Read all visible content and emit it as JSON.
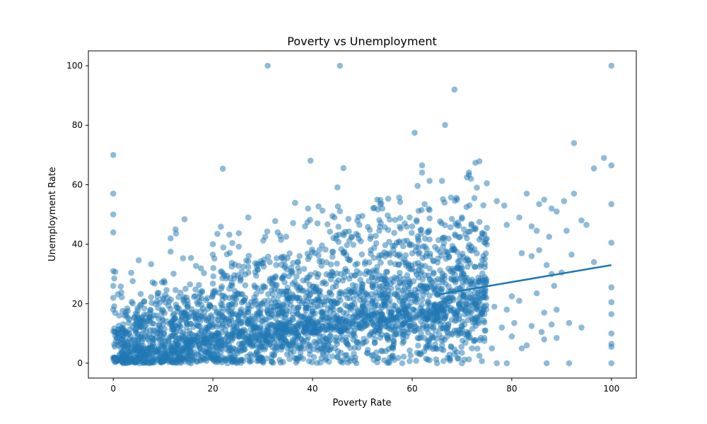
{
  "chart_data": {
    "type": "scatter",
    "title": "Poverty vs Unemployment",
    "xlabel": "Poverty Rate",
    "ylabel": "Unemployment Rate",
    "xlim": [
      -5,
      105
    ],
    "ylim": [
      -5,
      105
    ],
    "xticks": [
      0,
      20,
      40,
      60,
      80,
      100
    ],
    "yticks": [
      0,
      20,
      40,
      60,
      80,
      100
    ],
    "grid": false,
    "legend": "none",
    "point_color": "#1f77b4",
    "point_alpha": 0.5,
    "line_color": "#1f77b4",
    "series": [
      {
        "kind": "scatter",
        "points": [
          [
            31,
            100
          ],
          [
            45.5,
            100
          ],
          [
            68.5,
            92
          ],
          [
            100,
            100
          ],
          [
            60.5,
            77.5
          ],
          [
            62,
            66.5
          ],
          [
            0,
            70
          ],
          [
            0,
            57
          ],
          [
            0,
            50
          ],
          [
            0,
            44
          ],
          [
            92.5,
            74
          ],
          [
            98.5,
            69
          ],
          [
            96.5,
            65.5
          ],
          [
            100,
            66.5
          ],
          [
            100,
            53.5
          ],
          [
            100,
            40.5
          ],
          [
            71,
            62.5
          ],
          [
            75,
            60.5
          ],
          [
            69,
            55
          ],
          [
            72.5,
            55.5
          ],
          [
            77,
            54.5
          ],
          [
            78.5,
            53
          ],
          [
            83,
            57
          ],
          [
            85.5,
            53.5
          ],
          [
            86.5,
            55
          ],
          [
            88,
            52
          ],
          [
            89,
            51
          ],
          [
            90.5,
            54.5
          ],
          [
            92.5,
            57
          ],
          [
            94,
            48
          ],
          [
            95,
            46.5
          ],
          [
            91,
            44.5
          ],
          [
            96.5,
            34
          ],
          [
            92,
            36.5
          ],
          [
            100,
            25.5
          ],
          [
            100,
            20.5
          ],
          [
            100,
            16.5
          ],
          [
            100,
            10
          ],
          [
            100,
            6.5
          ],
          [
            100,
            5.5
          ],
          [
            100,
            0
          ],
          [
            12.5,
            45
          ],
          [
            11.5,
            42
          ],
          [
            11.5,
            37.5
          ],
          [
            0,
            31
          ],
          [
            0,
            26
          ],
          [
            0,
            22
          ],
          [
            0,
            18
          ],
          [
            20,
            40
          ],
          [
            20,
            36.5
          ],
          [
            30.5,
            42.5
          ],
          [
            33,
            44
          ],
          [
            38.5,
            46
          ],
          [
            41,
            47
          ],
          [
            44,
            49.5
          ],
          [
            50,
            49.5
          ],
          [
            53,
            55
          ],
          [
            54,
            52
          ],
          [
            59.5,
            49
          ],
          [
            58.5,
            47
          ],
          [
            62.5,
            53.5
          ],
          [
            63.5,
            51.5
          ],
          [
            66.5,
            54
          ],
          [
            68,
            48.5
          ],
          [
            70,
            49
          ],
          [
            73.5,
            47.5
          ],
          [
            75,
            45.5
          ],
          [
            79,
            46.5
          ],
          [
            81.5,
            49
          ],
          [
            84,
            46
          ],
          [
            85,
            44.5
          ],
          [
            87.5,
            42.5
          ],
          [
            82,
            37
          ],
          [
            84,
            36
          ],
          [
            85.5,
            38
          ],
          [
            87,
            33
          ],
          [
            88,
            30
          ],
          [
            90,
            30.5
          ],
          [
            88.5,
            26
          ],
          [
            85,
            23.5
          ],
          [
            80,
            22.5
          ],
          [
            81.5,
            21
          ],
          [
            79,
            18
          ],
          [
            76.5,
            19
          ],
          [
            74,
            17
          ],
          [
            86.5,
            17
          ],
          [
            89,
            18
          ],
          [
            88,
            13
          ],
          [
            91.5,
            13.5
          ],
          [
            94,
            12
          ],
          [
            86.5,
            8
          ],
          [
            83,
            6
          ],
          [
            82,
            5
          ],
          [
            76,
            5
          ],
          [
            72,
            5
          ],
          [
            70,
            0
          ],
          [
            77,
            0
          ],
          [
            79,
            0
          ],
          [
            87,
            0
          ],
          [
            91.5,
            0
          ],
          [
            65,
            0
          ],
          [
            58,
            0
          ],
          [
            63.5,
            1
          ],
          [
            61,
            3.5
          ],
          [
            66,
            6
          ],
          [
            68.5,
            3
          ],
          [
            73.5,
            2.5
          ],
          [
            78,
            12
          ],
          [
            80,
            9
          ],
          [
            80.5,
            13.5
          ],
          [
            84,
            12.5
          ],
          [
            86,
            10.5
          ],
          [
            89,
            8.5
          ]
        ],
        "density_regions": [
          {
            "x_range": [
              0,
              20
            ],
            "y_center_at_x0": 3,
            "y_center_at_x1": 10,
            "spread": 10
          },
          {
            "x_range": [
              20,
              45
            ],
            "y_center_at_x0": 10,
            "y_center_at_x1": 16,
            "spread": 14
          },
          {
            "x_range": [
              45,
              65
            ],
            "y_center_at_x0": 16,
            "y_center_at_x1": 20,
            "spread": 16
          },
          {
            "x_range": [
              65,
              75
            ],
            "y_center_at_x0": 20,
            "y_center_at_x1": 24,
            "spread": 18
          }
        ]
      },
      {
        "kind": "line",
        "points": [
          [
            65,
            23
          ],
          [
            100,
            33
          ]
        ]
      }
    ]
  }
}
